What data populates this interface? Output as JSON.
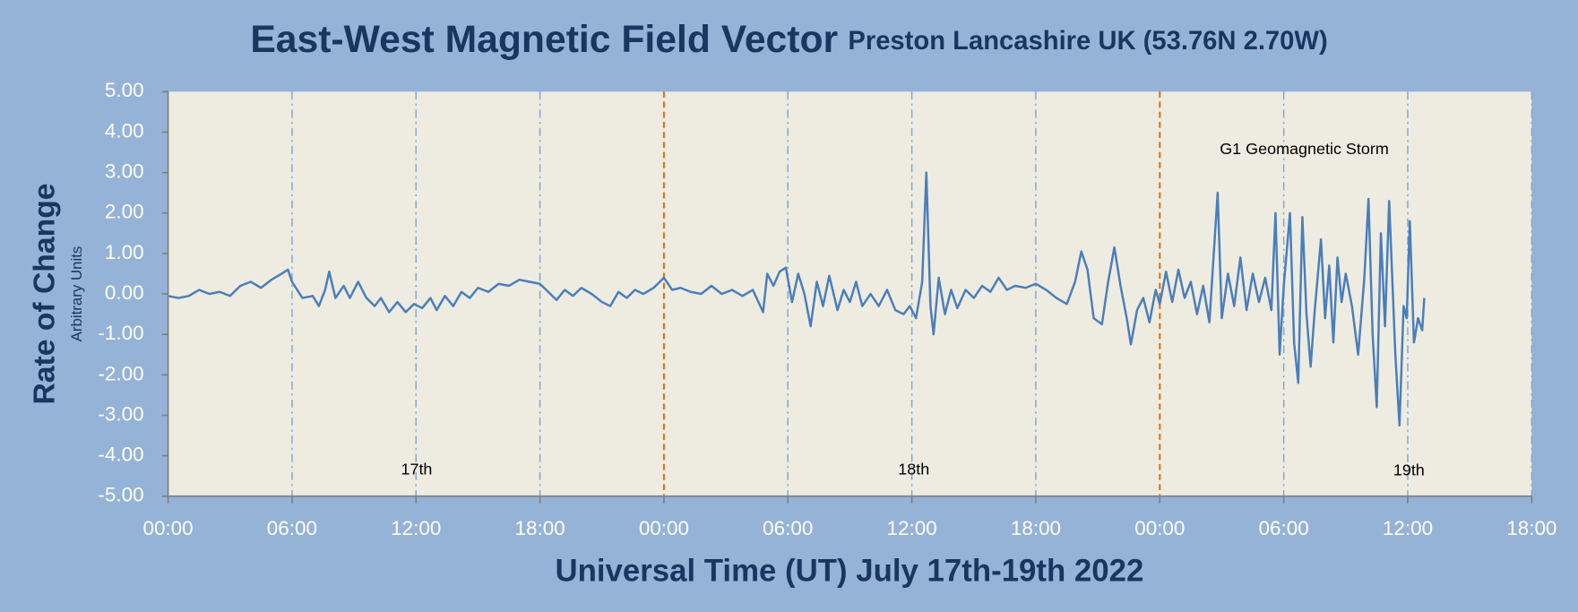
{
  "chart_data": {
    "type": "line",
    "title": "East-West Magnetic Field Vector",
    "subtitle": "Preston Lancashire UK (53.76N 2.70W)",
    "x_label": "Universal Time (UT) July 17th-19th 2022",
    "y_label": "Rate of Change",
    "y_sublabel": "Arbitrary Units",
    "annotations": [
      "17th",
      "18th",
      "19th",
      "G1 Geomagnetic Storm"
    ],
    "xlim": [
      0,
      66
    ],
    "xticks": [
      {
        "value": 0,
        "label": "00:00"
      },
      {
        "value": 6,
        "label": "06:00"
      },
      {
        "value": 12,
        "label": "12:00"
      },
      {
        "value": 18,
        "label": "18:00"
      },
      {
        "value": 24,
        "label": "00:00"
      },
      {
        "value": 30,
        "label": "06:00"
      },
      {
        "value": 36,
        "label": "12:00"
      },
      {
        "value": 42,
        "label": "18:00"
      },
      {
        "value": 48,
        "label": "00:00"
      },
      {
        "value": 54,
        "label": "06:00"
      },
      {
        "value": 60,
        "label": "12:00"
      },
      {
        "value": 66,
        "label": "18:00"
      }
    ],
    "ylim": [
      -5,
      5
    ],
    "yticks": [
      {
        "value": 5,
        "label": "5.00"
      },
      {
        "value": 4,
        "label": "4.00"
      },
      {
        "value": 3,
        "label": "3.00"
      },
      {
        "value": 2,
        "label": "2.00"
      },
      {
        "value": 1,
        "label": "1.00"
      },
      {
        "value": 0,
        "label": "0.00"
      },
      {
        "value": -1,
        "label": "-1.00"
      },
      {
        "value": -2,
        "label": "-2.00"
      },
      {
        "value": -3,
        "label": "-3.00"
      },
      {
        "value": -4,
        "label": "-4.00"
      },
      {
        "value": -5,
        "label": "-5.00"
      }
    ],
    "grid": true,
    "x": [
      0,
      0.5,
      1,
      1.5,
      2,
      2.5,
      3,
      3.5,
      4,
      4.5,
      5,
      5.5,
      5.8,
      6,
      6.5,
      7,
      7.3,
      7.6,
      7.8,
      8.1,
      8.5,
      8.8,
      9.2,
      9.6,
      10,
      10.3,
      10.7,
      11.1,
      11.5,
      11.9,
      12.3,
      12.7,
      13,
      13.4,
      13.8,
      14.2,
      14.6,
      15,
      15.5,
      16,
      16.5,
      17,
      17.5,
      18,
      18.4,
      18.8,
      19.2,
      19.6,
      20,
      20.5,
      21,
      21.4,
      21.8,
      22.2,
      22.6,
      23,
      23.5,
      24,
      24.4,
      24.8,
      25.3,
      25.8,
      26.3,
      26.8,
      27.3,
      27.8,
      28.3,
      28.8,
      29,
      29.3,
      29.6,
      29.9,
      30.2,
      30.5,
      30.8,
      31.1,
      31.4,
      31.7,
      32,
      32.4,
      32.7,
      33,
      33.3,
      33.6,
      34,
      34.4,
      34.8,
      35.2,
      35.6,
      35.9,
      36.2,
      36.5,
      36.7,
      36.9,
      37.05,
      37.3,
      37.6,
      37.9,
      38.2,
      38.6,
      39,
      39.4,
      39.8,
      40.2,
      40.6,
      41,
      41.5,
      42,
      42.5,
      43,
      43.5,
      43.9,
      44.2,
      44.5,
      44.8,
      45.2,
      45.5,
      45.8,
      46.1,
      46.4,
      46.6,
      46.9,
      47.2,
      47.5,
      47.8,
      48,
      48.3,
      48.6,
      48.9,
      49.2,
      49.5,
      49.8,
      50.1,
      50.4,
      50.6,
      50.8,
      51,
      51.3,
      51.6,
      51.9,
      52.2,
      52.5,
      52.8,
      53.1,
      53.4,
      53.6,
      53.8,
      54,
      54.3,
      54.5,
      54.7,
      54.9,
      55.1,
      55.3,
      55.5,
      55.8,
      56,
      56.2,
      56.4,
      56.6,
      56.8,
      57,
      57.3,
      57.6,
      57.9,
      58.1,
      58.3,
      58.5,
      58.7,
      58.9,
      59.1,
      59.4,
      59.6,
      59.8,
      59.95,
      60.1,
      60.3,
      60.5,
      60.7,
      60.8
    ],
    "series": [
      {
        "name": "East-West",
        "color": "#4a7ebb",
        "values": [
          -0.05,
          -0.1,
          -0.05,
          0.1,
          0,
          0.05,
          -0.05,
          0.2,
          0.3,
          0.15,
          0.35,
          0.5,
          0.6,
          0.3,
          -0.1,
          -0.05,
          -0.3,
          0.1,
          0.55,
          -0.1,
          0.2,
          -0.1,
          0.3,
          -0.1,
          -0.3,
          -0.1,
          -0.45,
          -0.2,
          -0.45,
          -0.25,
          -0.35,
          -0.1,
          -0.4,
          -0.05,
          -0.3,
          0.05,
          -0.1,
          0.15,
          0.05,
          0.25,
          0.2,
          0.35,
          0.3,
          0.25,
          0.05,
          -0.15,
          0.1,
          -0.05,
          0.15,
          0,
          -0.2,
          -0.3,
          0.05,
          -0.1,
          0.1,
          0,
          0.15,
          0.4,
          0.1,
          0.15,
          0.05,
          0,
          0.2,
          0,
          0.1,
          -0.05,
          0.1,
          -0.45,
          0.5,
          0.2,
          0.55,
          0.65,
          -0.2,
          0.5,
          0,
          -0.8,
          0.3,
          -0.3,
          0.45,
          -0.4,
          0.1,
          -0.2,
          0.3,
          -0.3,
          0,
          -0.3,
          0.1,
          -0.4,
          -0.5,
          -0.3,
          -0.6,
          0.3,
          3.0,
          -0.3,
          -1.0,
          0.4,
          -0.5,
          0.1,
          -0.35,
          0.1,
          -0.1,
          0.2,
          0.05,
          0.4,
          0.1,
          0.2,
          0.15,
          0.25,
          0.1,
          -0.1,
          -0.25,
          0.3,
          1.05,
          0.6,
          -0.6,
          -0.75,
          0.3,
          1.15,
          0.2,
          -0.6,
          -1.25,
          -0.4,
          -0.1,
          -0.7,
          0.1,
          -0.25,
          0.55,
          -0.2,
          0.6,
          -0.1,
          0.3,
          -0.5,
          0.2,
          -0.7,
          0.9,
          2.5,
          -0.6,
          0.5,
          -0.3,
          0.9,
          -0.4,
          0.5,
          -0.2,
          0.4,
          -0.4,
          2.0,
          -1.5,
          0.2,
          2.0,
          -1.2,
          -2.2,
          1.9,
          -0.5,
          -1.8,
          -0.4,
          1.35,
          -0.6,
          0.7,
          -1.2,
          0.9,
          -0.2,
          0.5,
          -0.3,
          -1.5,
          0.4,
          2.35,
          -1.0,
          -2.8,
          1.5,
          -0.8,
          2.3,
          -1.5,
          -3.25,
          -0.3,
          -0.6,
          1.8,
          -1.2,
          -0.6,
          -0.9,
          -0.1
        ]
      }
    ]
  }
}
